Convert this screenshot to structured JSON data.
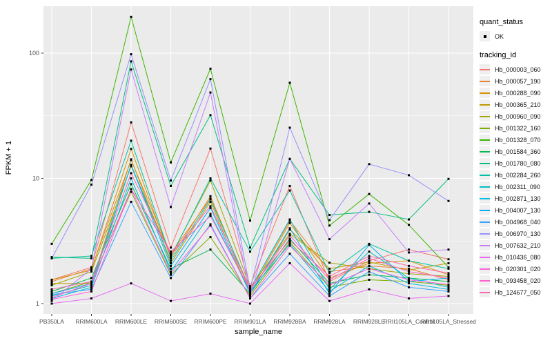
{
  "chart_data": {
    "type": "line",
    "title": "",
    "xlabel": "sample_name",
    "ylabel": "FPKM + 1",
    "y_scale": "log10",
    "y_ticks": [
      1,
      10,
      100
    ],
    "y_tick_labels": [
      "1",
      "10",
      "100"
    ],
    "ylim": [
      0.85,
      240
    ],
    "grid": "on",
    "legend_position": "right",
    "categories": [
      "PB350LA",
      "RRIM600LA",
      "RRIM600LE",
      "RRIM600SE",
      "RRIM600PE",
      "RRIM901LA",
      "RRIM928BA",
      "RRIM928LA",
      "RRIM928LE",
      "RRII105LA_Control",
      "RRII105LA_Stressed"
    ],
    "point_shape": "filled-square-black",
    "series": [
      {
        "name": "Hb_000003_060",
        "color": "#F8766D",
        "values": [
          1.55,
          1.95,
          28,
          2.8,
          17.3,
          1.38,
          8.7,
          1.5,
          2.2,
          2.7,
          2.26
        ]
      },
      {
        "name": "Hb_000057_190",
        "color": "#EA8331",
        "values": [
          1.5,
          1.9,
          14,
          2.5,
          6.9,
          1.3,
          4.6,
          1.8,
          2.0,
          1.9,
          1.55
        ]
      },
      {
        "name": "Hb_000288_090",
        "color": "#D89000",
        "values": [
          1.55,
          1.85,
          17.2,
          2.3,
          7.2,
          1.25,
          4.4,
          1.6,
          2.1,
          2.2,
          1.7
        ]
      },
      {
        "name": "Hb_000365_210",
        "color": "#C09B00",
        "values": [
          1.45,
          1.45,
          14.2,
          2.1,
          6.5,
          1.2,
          3.9,
          1.9,
          2.15,
          1.85,
          2.1
        ]
      },
      {
        "name": "Hb_000960_090",
        "color": "#A3A500",
        "values": [
          1.4,
          1.8,
          12.5,
          2.4,
          9.6,
          1.35,
          3.6,
          2.12,
          1.9,
          1.73,
          1.65
        ]
      },
      {
        "name": "Hb_001322_160",
        "color": "#7CAE00",
        "values": [
          1.2,
          1.5,
          7.8,
          1.7,
          3.4,
          1.15,
          3.1,
          1.35,
          1.55,
          1.5,
          1.4
        ]
      },
      {
        "name": "Hb_001328_070",
        "color": "#39B600",
        "values": [
          3.0,
          9.7,
          195,
          13.4,
          75,
          4.6,
          58,
          4.2,
          7.5,
          4.25,
          1.95
        ]
      },
      {
        "name": "Hb_001584_360",
        "color": "#00BB4E",
        "values": [
          1.25,
          1.6,
          9.0,
          1.9,
          2.7,
          1.2,
          3.3,
          1.45,
          1.7,
          1.6,
          1.5
        ]
      },
      {
        "name": "Hb_001780_080",
        "color": "#00BF7D",
        "values": [
          2.35,
          2.3,
          86,
          8.7,
          32,
          2.8,
          14.3,
          5.1,
          5.4,
          4.7,
          9.9
        ]
      },
      {
        "name": "Hb_002284_260",
        "color": "#00C1A3",
        "values": [
          2.3,
          2.4,
          20,
          2.35,
          10,
          2.6,
          8.0,
          1.75,
          3.0,
          2.2,
          1.9
        ]
      },
      {
        "name": "Hb_002311_090",
        "color": "#00BFC4",
        "values": [
          1.15,
          1.4,
          12.8,
          2.2,
          6.8,
          1.3,
          4.7,
          1.3,
          2.6,
          1.6,
          1.35
        ]
      },
      {
        "name": "Hb_002871_130",
        "color": "#00BAE0",
        "values": [
          1.1,
          1.35,
          10,
          1.8,
          5.2,
          1.25,
          3.0,
          1.25,
          2.0,
          1.45,
          1.3
        ]
      },
      {
        "name": "Hb_004007_130",
        "color": "#00B0F6",
        "values": [
          1.2,
          1.45,
          12.8,
          2.0,
          5.8,
          1.2,
          4.0,
          1.2,
          2.94,
          1.5,
          1.6
        ]
      },
      {
        "name": "Hb_004968_040",
        "color": "#35A2FF",
        "values": [
          1.18,
          1.3,
          6.5,
          1.6,
          4.3,
          1.1,
          2.5,
          1.15,
          1.8,
          1.35,
          1.25
        ]
      },
      {
        "name": "Hb_006970_130",
        "color": "#9590FF",
        "values": [
          2.3,
          8.9,
          98,
          9.6,
          62,
          1.3,
          25.4,
          4.64,
          13,
          10.6,
          6.6
        ]
      },
      {
        "name": "Hb_007632_210",
        "color": "#C77CFF",
        "values": [
          1.05,
          1.9,
          74,
          5.9,
          48.5,
          1.15,
          14.3,
          3.27,
          6.3,
          2.56,
          2.7
        ]
      },
      {
        "name": "Hb_010436_080",
        "color": "#E76BF3",
        "values": [
          1.0,
          1.1,
          1.45,
          1.05,
          1.2,
          1.0,
          2.1,
          1.05,
          1.3,
          1.1,
          1.15
        ]
      },
      {
        "name": "Hb_020301_020",
        "color": "#FA62DB",
        "values": [
          1.08,
          1.25,
          8.2,
          1.75,
          4.2,
          1.1,
          2.9,
          1.4,
          1.9,
          1.55,
          1.42
        ]
      },
      {
        "name": "Hb_093458_020",
        "color": "#FF61CC",
        "values": [
          1.12,
          1.45,
          8.2,
          2.6,
          5.0,
          1.28,
          3.5,
          1.55,
          2.3,
          1.8,
          1.6
        ]
      },
      {
        "name": "Hb_124677_050",
        "color": "#FF65AC",
        "values": [
          1.3,
          1.5,
          11,
          2.45,
          6.0,
          1.32,
          3.2,
          1.65,
          2.4,
          2.0,
          1.75
        ]
      }
    ],
    "legend": {
      "quant_status": {
        "title": "quant_status",
        "items": [
          {
            "label": "OK"
          }
        ]
      },
      "tracking_id": {
        "title": "tracking_id"
      }
    }
  }
}
